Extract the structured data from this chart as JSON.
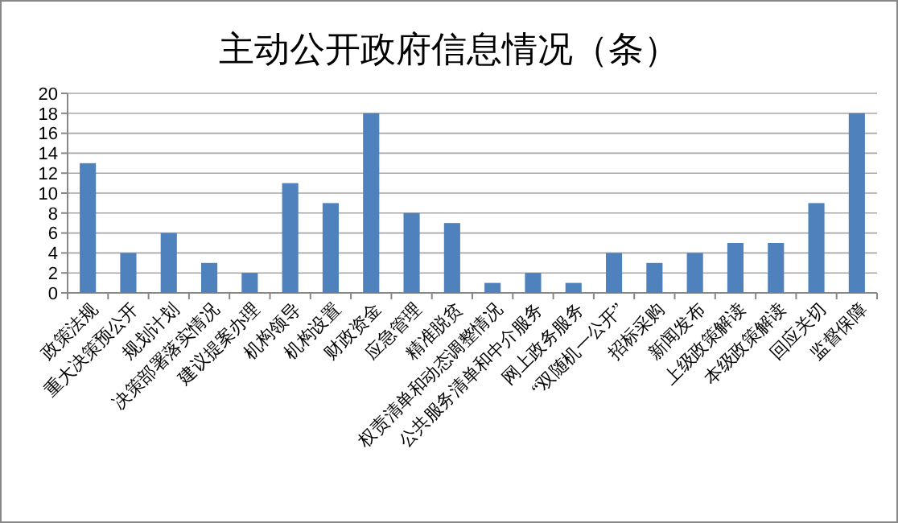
{
  "chart_data": {
    "type": "bar",
    "title": "主动公开政府信息情况（条）",
    "categories": [
      "政策法规",
      "重大决策预公开",
      "规划计划",
      "决策部署落实情况",
      "建议提案办理",
      "机构领导",
      "机构设置",
      "财政资金",
      "应急管理",
      "精准脱贫",
      "权责清单和动态调整情况",
      "公共服务清单和中介服务",
      "网上政务服务",
      "“双随机一公开”",
      "招标采购",
      "新闻发布",
      "上级政策解读",
      "本级政策解读",
      "回应关切",
      "监督保障"
    ],
    "values": [
      13,
      4,
      6,
      3,
      2,
      11,
      9,
      18,
      8,
      7,
      1,
      2,
      1,
      4,
      3,
      4,
      5,
      5,
      9,
      18
    ],
    "color": "#4f81bd",
    "ylim": [
      0,
      20
    ],
    "yticks": [
      0,
      2,
      4,
      6,
      8,
      10,
      12,
      14,
      16,
      18,
      20
    ],
    "grid": "y"
  }
}
